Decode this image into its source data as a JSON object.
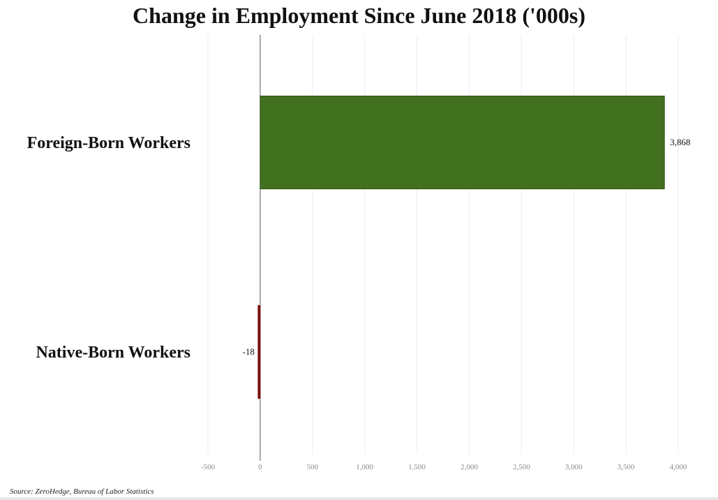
{
  "chart_data": {
    "type": "bar",
    "orientation": "horizontal",
    "title": "Change in Employment Since June 2018 ('000s)",
    "categories": [
      "Foreign-Born Workers",
      "Native-Born Workers"
    ],
    "values": [
      3868,
      -18
    ],
    "value_labels": [
      "3,868",
      "-18"
    ],
    "colors": [
      "#41701f",
      "#7a1010"
    ],
    "xlim": [
      -500,
      4000
    ],
    "xticks": [
      -500,
      0,
      500,
      1000,
      1500,
      2000,
      2500,
      3000,
      3500,
      4000
    ],
    "xtick_labels": [
      "-500",
      "0",
      "500",
      "1,000",
      "1,500",
      "2,000",
      "2,500",
      "3,000",
      "3,500",
      "4,000"
    ],
    "grid": true,
    "xlabel": "",
    "ylabel": ""
  },
  "source": "Source: ZeroHedge, Bureau of Labor Statistics"
}
